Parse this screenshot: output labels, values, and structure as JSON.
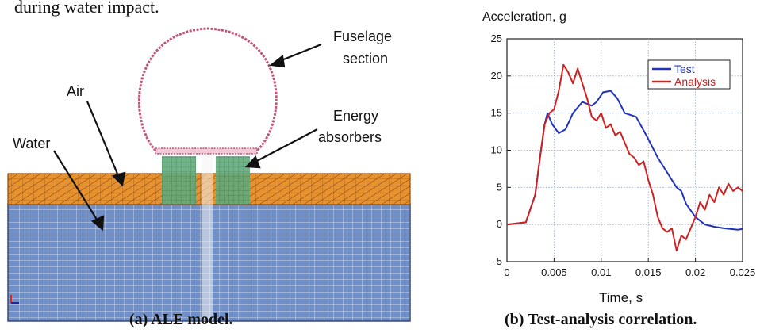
{
  "top_text": "during water impact.",
  "left_figure": {
    "caption": "(a) ALE model.",
    "labels": {
      "fuselage": [
        "Fuselage",
        "section"
      ],
      "air": "Air",
      "water": "Water",
      "energy": [
        "Energy",
        "absorbers"
      ]
    }
  },
  "right_figure": {
    "caption": "(b) Test-analysis correlation.",
    "y_axis_label": "Acceleration, g",
    "x_axis_label": "Time, s"
  },
  "chart_data": {
    "type": "line",
    "title": "",
    "xlabel": "Time, s",
    "ylabel": "Acceleration, g",
    "xlim": [
      0,
      0.025
    ],
    "ylim": [
      -5,
      25
    ],
    "x_ticks": [
      "0",
      "0.005",
      "0.01",
      "0.015",
      "0.02",
      "0.025"
    ],
    "y_ticks": [
      "-5",
      "0",
      "5",
      "10",
      "15",
      "20",
      "25"
    ],
    "grid": true,
    "legend_position": "top-right",
    "series": [
      {
        "name": "Test",
        "color": "#2233bb",
        "points": [
          [
            0,
            0
          ],
          [
            0.002,
            0.3
          ],
          [
            0.003,
            4
          ],
          [
            0.0035,
            9
          ],
          [
            0.004,
            13.5
          ],
          [
            0.0043,
            15
          ],
          [
            0.0048,
            13.5
          ],
          [
            0.0055,
            12.3
          ],
          [
            0.0062,
            12.8
          ],
          [
            0.007,
            15
          ],
          [
            0.008,
            16.5
          ],
          [
            0.009,
            16
          ],
          [
            0.0095,
            16.5
          ],
          [
            0.0102,
            17.8
          ],
          [
            0.011,
            18
          ],
          [
            0.0117,
            17
          ],
          [
            0.0125,
            15
          ],
          [
            0.0137,
            14.5
          ],
          [
            0.015,
            11.5
          ],
          [
            0.016,
            9
          ],
          [
            0.017,
            7
          ],
          [
            0.018,
            5
          ],
          [
            0.0185,
            4.5
          ],
          [
            0.019,
            2.8
          ],
          [
            0.02,
            1
          ],
          [
            0.021,
            0
          ],
          [
            0.022,
            -0.3
          ],
          [
            0.023,
            -0.5
          ],
          [
            0.0245,
            -0.7
          ],
          [
            0.025,
            -0.6
          ]
        ]
      },
      {
        "name": "Analysis",
        "color": "#cc2222",
        "points": [
          [
            0,
            0
          ],
          [
            0.002,
            0.3
          ],
          [
            0.003,
            4
          ],
          [
            0.0035,
            9
          ],
          [
            0.004,
            13.5
          ],
          [
            0.0045,
            15
          ],
          [
            0.005,
            15.5
          ],
          [
            0.0055,
            18
          ],
          [
            0.006,
            21.5
          ],
          [
            0.0065,
            20.5
          ],
          [
            0.007,
            19
          ],
          [
            0.0075,
            21
          ],
          [
            0.008,
            19
          ],
          [
            0.0085,
            17
          ],
          [
            0.009,
            14.5
          ],
          [
            0.0095,
            14
          ],
          [
            0.01,
            15
          ],
          [
            0.0105,
            13
          ],
          [
            0.011,
            13.5
          ],
          [
            0.0115,
            12
          ],
          [
            0.012,
            12.5
          ],
          [
            0.0125,
            11
          ],
          [
            0.013,
            9.5
          ],
          [
            0.0135,
            9
          ],
          [
            0.014,
            8
          ],
          [
            0.0145,
            8.5
          ],
          [
            0.015,
            6
          ],
          [
            0.0155,
            4
          ],
          [
            0.016,
            1
          ],
          [
            0.0165,
            -0.5
          ],
          [
            0.017,
            -1
          ],
          [
            0.0175,
            -0.5
          ],
          [
            0.018,
            -3.5
          ],
          [
            0.0185,
            -1.5
          ],
          [
            0.019,
            -2
          ],
          [
            0.0195,
            -0.5
          ],
          [
            0.02,
            1
          ],
          [
            0.0205,
            3
          ],
          [
            0.021,
            2
          ],
          [
            0.0215,
            4
          ],
          [
            0.022,
            3
          ],
          [
            0.0225,
            5
          ],
          [
            0.023,
            4
          ],
          [
            0.0235,
            5.5
          ],
          [
            0.024,
            4.5
          ],
          [
            0.0245,
            5
          ],
          [
            0.025,
            4.5
          ]
        ]
      }
    ]
  }
}
